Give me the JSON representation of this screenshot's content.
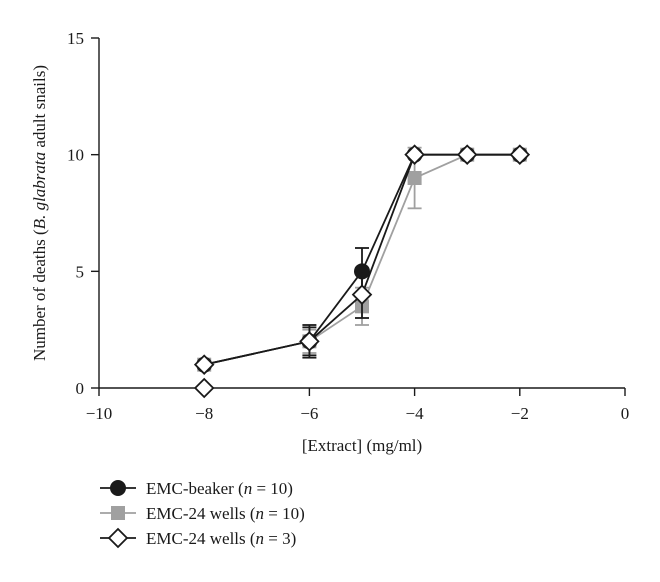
{
  "chart_data": {
    "type": "line",
    "title": "",
    "xlabel": "[Extract] (mg/ml)",
    "ylabel_parts": [
      {
        "text": "Number of deaths (",
        "italic": false
      },
      {
        "text": "B. glabrata",
        "italic": true
      },
      {
        "text": " adult snails)",
        "italic": false
      }
    ],
    "xlim": [
      -10,
      0
    ],
    "ylim": [
      0,
      15
    ],
    "xticks": [
      -10,
      -8,
      -6,
      -4,
      -2,
      0
    ],
    "xtick_labels": [
      "−10",
      "−8",
      "−6",
      "−4",
      "−2",
      "0"
    ],
    "yticks": [
      0,
      5,
      10,
      15
    ],
    "ytick_labels": [
      "0",
      "5",
      "10",
      "15"
    ],
    "grid": false,
    "legend_position": "bottom-left",
    "series": [
      {
        "name_parts": [
          {
            "text": "EMC-beaker (",
            "italic": false
          },
          {
            "text": "n",
            "italic": true
          },
          {
            "text": " = 10)",
            "italic": false
          }
        ],
        "marker": "circle",
        "color": "#1a1a1a",
        "points": [
          {
            "x": -8,
            "y": 1,
            "err": 0
          },
          {
            "x": -6,
            "y": 2,
            "err": 0.6
          },
          {
            "x": -5,
            "y": 5,
            "err": 1.0
          },
          {
            "x": -4,
            "y": 10,
            "err": 0
          },
          {
            "x": -3,
            "y": 10,
            "err": 0
          },
          {
            "x": -2,
            "y": 10,
            "err": 0
          }
        ]
      },
      {
        "name_parts": [
          {
            "text": "EMC-24 wells (",
            "italic": false
          },
          {
            "text": "n",
            "italic": true
          },
          {
            "text": " = 10)",
            "italic": false
          }
        ],
        "marker": "square",
        "color": "#a0a0a0",
        "points": [
          {
            "x": -8,
            "y": 1,
            "err": 0
          },
          {
            "x": -6,
            "y": 2,
            "err": 0.5
          },
          {
            "x": -5,
            "y": 3.5,
            "err": 0.8
          },
          {
            "x": -4,
            "y": 9,
            "err": 1.3
          },
          {
            "x": -3,
            "y": 10,
            "err": 0
          },
          {
            "x": -2,
            "y": 10,
            "err": 0
          }
        ]
      },
      {
        "name_parts": [
          {
            "text": "EMC-24 wells (",
            "italic": false
          },
          {
            "text": "n",
            "italic": true
          },
          {
            "text": " = 3)",
            "italic": false
          }
        ],
        "marker": "diamond",
        "color": "#1a1a1a",
        "points": [
          {
            "x": -8,
            "y": 1,
            "err": 0
          },
          {
            "x": -8,
            "y": 0,
            "err": 0
          },
          {
            "x": -6,
            "y": 2,
            "err": 0.7
          },
          {
            "x": -5,
            "y": 4,
            "err": 1.0
          },
          {
            "x": -4,
            "y": 10,
            "err": 0
          },
          {
            "x": -3,
            "y": 10,
            "err": 0
          },
          {
            "x": -2,
            "y": 10,
            "err": 0
          }
        ]
      }
    ]
  }
}
